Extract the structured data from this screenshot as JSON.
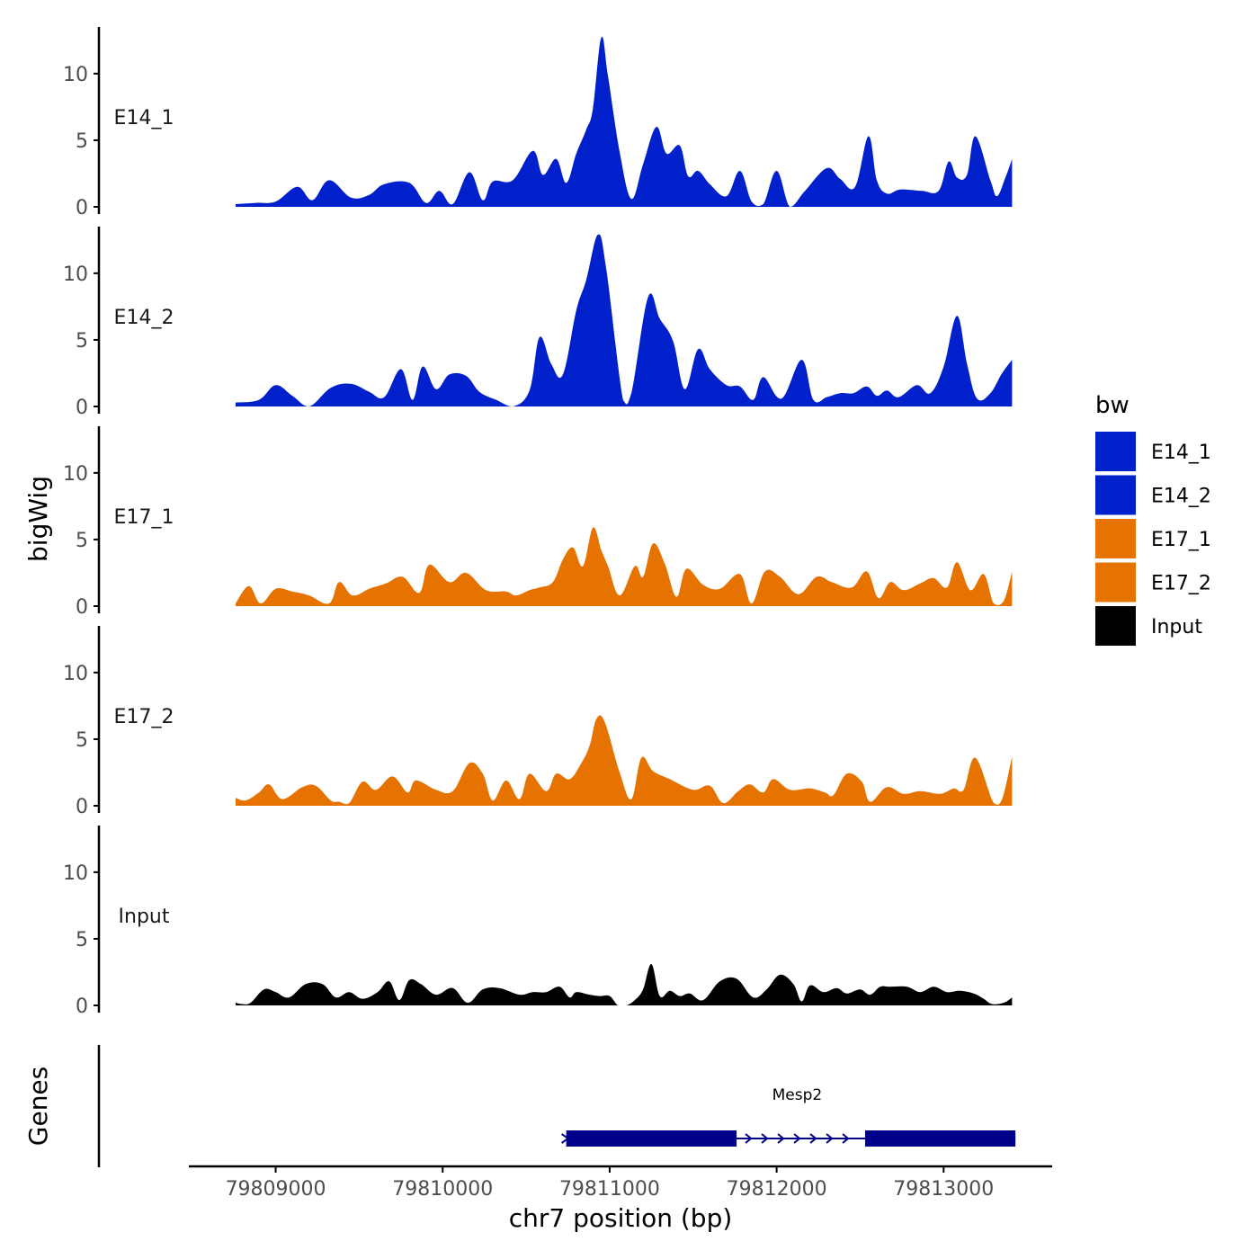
{
  "chart_data": {
    "type": "area",
    "y_axis_title": "bigWig",
    "x_axis_title": "chr7 position (bp)",
    "x_range": [
      79808760,
      79813410
    ],
    "x_ticks": [
      79809000,
      79810000,
      79811000,
      79812000,
      79813000
    ],
    "x_tick_labels": [
      "79809000",
      "79810000",
      "79811000",
      "79812000",
      "79813000"
    ],
    "y_range": [
      0,
      13.5
    ],
    "y_ticks": [
      0,
      5,
      10
    ],
    "y_tick_labels": [
      "0",
      "5",
      "10"
    ],
    "legend": {
      "title": "bw",
      "items": [
        {
          "label": "E14_1",
          "color": "#0020cc"
        },
        {
          "label": "E14_2",
          "color": "#0020cc"
        },
        {
          "label": "E17_1",
          "color": "#e67300"
        },
        {
          "label": "E17_2",
          "color": "#e67300"
        },
        {
          "label": "Input",
          "color": "#000000"
        }
      ]
    },
    "tracks": [
      {
        "name": "E14_1",
        "color": "#0020cc",
        "x": [
          79808760,
          79808880,
          79809000,
          79809130,
          79809220,
          79809320,
          79809450,
          79809560,
          79809650,
          79809800,
          79809900,
          79809980,
          79810060,
          79810160,
          79810240,
          79810300,
          79810420,
          79810540,
          79810600,
          79810680,
          79810740,
          79810800,
          79810860,
          79810900,
          79810950,
          79810990,
          79811060,
          79811130,
          79811200,
          79811280,
          79811340,
          79811420,
          79811470,
          79811530,
          79811600,
          79811700,
          79811780,
          79811850,
          79811920,
          79812000,
          79812080,
          79812170,
          79812300,
          79812380,
          79812470,
          79812550,
          79812600,
          79812660,
          79812740,
          79812870,
          79812970,
          79813030,
          79813080,
          79813140,
          79813190,
          79813280,
          79813320,
          79813370,
          79813410
        ],
        "y": [
          0.2,
          0.3,
          0.4,
          1.5,
          0.5,
          2.0,
          0.7,
          0.9,
          1.7,
          1.8,
          0.3,
          1.2,
          0.2,
          2.6,
          0.5,
          1.9,
          2.0,
          4.2,
          2.4,
          3.6,
          1.8,
          4.0,
          5.8,
          7.4,
          12.7,
          9.8,
          4.1,
          0.6,
          3.2,
          6.0,
          4.0,
          4.6,
          2.3,
          2.7,
          1.7,
          0.8,
          2.7,
          0.4,
          0.2,
          2.7,
          0.0,
          1.2,
          2.9,
          2.1,
          1.5,
          5.3,
          2.0,
          1.0,
          1.3,
          1.2,
          1.2,
          3.4,
          2.2,
          2.4,
          5.3,
          2.0,
          0.8,
          2.2,
          3.6
        ]
      },
      {
        "name": "E14_2",
        "color": "#0020cc",
        "x": [
          79808760,
          79808900,
          79809000,
          79809100,
          79809200,
          79809330,
          79809450,
          79809560,
          79809650,
          79809750,
          79809820,
          79809880,
          79809960,
          79810040,
          79810140,
          79810220,
          79810320,
          79810420,
          79810520,
          79810580,
          79810650,
          79810720,
          79810800,
          79810860,
          79810930,
          79810980,
          79811080,
          79811130,
          79811230,
          79811300,
          79811380,
          79811450,
          79811530,
          79811600,
          79811700,
          79811780,
          79811860,
          79811920,
          79812030,
          79812150,
          79812220,
          79812300,
          79812380,
          79812460,
          79812540,
          79812600,
          79812660,
          79812730,
          79812840,
          79812920,
          79813000,
          79813080,
          79813140,
          79813200,
          79813280,
          79813350,
          79813410
        ],
        "y": [
          0.3,
          0.5,
          1.6,
          0.8,
          0.0,
          1.4,
          1.7,
          1.1,
          0.7,
          2.8,
          0.5,
          3.0,
          1.3,
          2.4,
          2.3,
          1.1,
          0.5,
          0.0,
          1.2,
          5.2,
          3.2,
          2.4,
          7.2,
          9.5,
          12.9,
          10.3,
          0.5,
          1.0,
          8.2,
          6.6,
          4.9,
          1.3,
          4.3,
          2.8,
          1.6,
          1.5,
          0.5,
          2.2,
          0.6,
          3.5,
          0.5,
          0.7,
          1.0,
          1.0,
          1.5,
          0.8,
          1.2,
          0.7,
          1.6,
          1.0,
          3.0,
          6.8,
          3.2,
          0.6,
          1.0,
          2.5,
          3.5
        ]
      },
      {
        "name": "E17_1",
        "color": "#e67300",
        "x": [
          79808760,
          79808840,
          79808910,
          79809000,
          79809100,
          79809200,
          79809320,
          79809380,
          79809460,
          79809560,
          79809660,
          79809760,
          79809860,
          79809920,
          79810040,
          79810140,
          79810260,
          79810380,
          79810440,
          79810520,
          79810580,
          79810660,
          79810720,
          79810780,
          79810840,
          79810900,
          79810950,
          79810990,
          79811060,
          79811150,
          79811200,
          79811260,
          79811330,
          79811400,
          79811460,
          79811560,
          79811660,
          79811780,
          79811850,
          79811930,
          79812020,
          79812130,
          79812240,
          79812330,
          79812450,
          79812540,
          79812610,
          79812680,
          79812760,
          79812860,
          79812940,
          79813020,
          79813080,
          79813160,
          79813240,
          79813300,
          79813360,
          79813410
        ],
        "y": [
          0.2,
          1.5,
          0.2,
          1.3,
          1.1,
          0.8,
          0.2,
          1.8,
          0.8,
          1.3,
          1.7,
          2.2,
          1.0,
          3.1,
          1.8,
          2.5,
          1.2,
          1.1,
          0.8,
          1.2,
          1.4,
          1.8,
          3.5,
          4.4,
          3.0,
          5.9,
          4.2,
          3.0,
          0.8,
          3.0,
          2.2,
          4.7,
          3.2,
          0.7,
          2.8,
          1.6,
          1.3,
          2.4,
          0.2,
          2.6,
          2.2,
          0.9,
          2.2,
          1.8,
          1.4,
          2.6,
          0.6,
          1.8,
          1.2,
          1.7,
          2.1,
          1.4,
          3.3,
          1.2,
          2.4,
          0.2,
          0.4,
          2.6
        ]
      },
      {
        "name": "E17_2",
        "color": "#e67300",
        "x": [
          79808760,
          79808820,
          79808900,
          79808960,
          79809040,
          79809160,
          79809240,
          79809330,
          79809380,
          79809440,
          79809520,
          79809600,
          79809700,
          79809790,
          79809840,
          79809960,
          79810060,
          79810160,
          79810240,
          79810300,
          79810380,
          79810460,
          79810520,
          79810620,
          79810680,
          79810760,
          79810830,
          79810880,
          79810920,
          79810970,
          79811060,
          79811130,
          79811190,
          79811260,
          79811360,
          79811500,
          79811600,
          79811680,
          79811770,
          79811840,
          79811920,
          79811980,
          79812080,
          79812200,
          79812290,
          79812340,
          79812420,
          79812510,
          79812560,
          79812660,
          79812760,
          79812860,
          79812980,
          79813060,
          79813120,
          79813190,
          79813300,
          79813350,
          79813410
        ],
        "y": [
          0.6,
          0.4,
          1.0,
          1.6,
          0.5,
          1.4,
          1.5,
          0.4,
          0.3,
          0.2,
          1.8,
          1.2,
          2.2,
          1.0,
          1.9,
          1.2,
          1.1,
          3.2,
          2.4,
          0.4,
          1.9,
          0.5,
          2.4,
          1.1,
          2.4,
          2.0,
          3.2,
          4.5,
          6.5,
          6.3,
          2.5,
          0.5,
          3.6,
          2.6,
          2.0,
          1.2,
          1.5,
          0.2,
          1.1,
          1.6,
          1.0,
          2.0,
          1.2,
          1.3,
          1.0,
          0.8,
          2.4,
          1.8,
          0.3,
          1.4,
          0.9,
          1.1,
          0.9,
          1.3,
          1.2,
          3.6,
          0.2,
          0.5,
          3.7
        ]
      },
      {
        "name": "Input",
        "color": "#000000",
        "x": [
          79808760,
          79808800,
          79808850,
          79808930,
          79809000,
          79809080,
          79809180,
          79809280,
          79809360,
          79809440,
          79809520,
          79809610,
          79809680,
          79809740,
          79809800,
          79809870,
          79809960,
          79810060,
          79810150,
          79810240,
          79810340,
          79810460,
          79810540,
          79810620,
          79810700,
          79810760,
          79810800,
          79810880,
          79810940,
          79811000,
          79811050,
          79811100,
          79811150,
          79811200,
          79811250,
          79811300,
          79811360,
          79811420,
          79811480,
          79811560,
          79811660,
          79811760,
          79811860,
          79811940,
          79812020,
          79812100,
          79812150,
          79812200,
          79812280,
          79812360,
          79812420,
          79812500,
          79812560,
          79812620,
          79812680,
          79812780,
          79812860,
          79812940,
          79813020,
          79813100,
          79813180,
          79813240,
          79813290,
          79813360,
          79813410
        ],
        "y": [
          0.2,
          0.1,
          0.2,
          1.2,
          1.0,
          0.6,
          1.6,
          1.6,
          0.6,
          1.0,
          0.5,
          1.0,
          1.8,
          0.4,
          1.9,
          1.6,
          0.8,
          1.3,
          0.2,
          1.2,
          1.3,
          0.8,
          1.0,
          1.0,
          1.4,
          0.6,
          1.0,
          0.8,
          0.7,
          0.7,
          0.0,
          0.0,
          0.4,
          1.2,
          3.1,
          0.7,
          1.1,
          0.7,
          0.9,
          0.4,
          1.8,
          2.0,
          0.6,
          1.2,
          2.3,
          1.6,
          0.3,
          1.5,
          1.0,
          1.3,
          0.9,
          1.2,
          0.8,
          1.4,
          1.4,
          1.4,
          1.0,
          1.4,
          1.0,
          1.1,
          0.9,
          0.5,
          0.1,
          0.2,
          0.6
        ]
      }
    ],
    "genes_track": {
      "label": "Genes",
      "gene_name": "Mesp2",
      "gene_start": 79810740,
      "gene_end": 79813430,
      "strand": "+",
      "exons": [
        [
          79810740,
          79811760
        ],
        [
          79812530,
          79813430
        ]
      ],
      "color": "#00008b"
    }
  }
}
